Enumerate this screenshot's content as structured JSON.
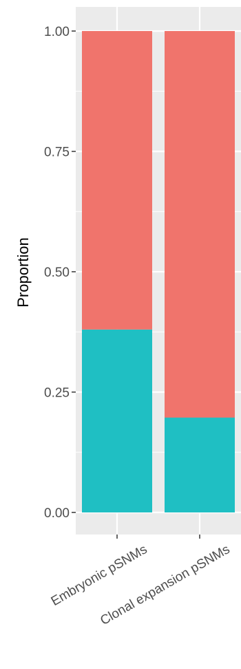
{
  "chart_data": {
    "type": "bar",
    "stacked": true,
    "title": "",
    "xlabel": "",
    "ylabel": "Proportion",
    "ylim": [
      0,
      1
    ],
    "yticks": [
      "0.00",
      "0.25",
      "0.50",
      "0.75",
      "1.00"
    ],
    "categories": [
      "Embryonic pSNMs",
      "Clonal expansion pSNMs"
    ],
    "series": [
      {
        "values": [
          0.38,
          0.197
        ],
        "color": "#1fbfc3"
      },
      {
        "values": [
          0.62,
          0.803
        ],
        "color": "#f0746c"
      }
    ],
    "grid": true,
    "panel_background": "#ebebeb",
    "x_tick_label_rotation": "angled"
  }
}
